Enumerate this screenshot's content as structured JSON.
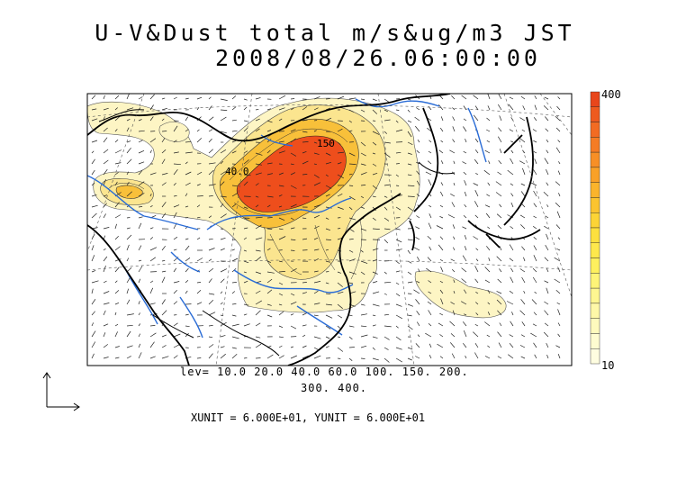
{
  "title": {
    "line1": "U-V&Dust total m/s&ug/m3 JST",
    "line2": "2008/08/26.06:00:00"
  },
  "map_labels": {
    "contour_40": "40.0",
    "contour_150": "150"
  },
  "colorbar": {
    "max_label": "400",
    "min_label": "10",
    "colors": [
      "#e8461b",
      "#ee5a1f",
      "#f26b22",
      "#f57c24",
      "#f78f26",
      "#f9a128",
      "#fab42c",
      "#fbc430",
      "#fcd436",
      "#fde03e",
      "#fee84c",
      "#fef05e",
      "#fef478",
      "#fef691",
      "#fef8a8",
      "#fefabd",
      "#fefcd0",
      "#fefde0"
    ]
  },
  "contour_levels": {
    "line1": "lev= 10.0 20.0 40.0 60.0 100. 150. 200.",
    "line2": "300. 400."
  },
  "units": {
    "text": "XUNIT = 6.000E+01, YUNIT = 6.000E+01"
  },
  "colors": {
    "low": "#fdf6c8",
    "mid": "#fbe58a",
    "high": "#f6a32a",
    "peak": "#ee4a1c",
    "rivers": "#2a6cd6",
    "coast": "#000000"
  }
}
